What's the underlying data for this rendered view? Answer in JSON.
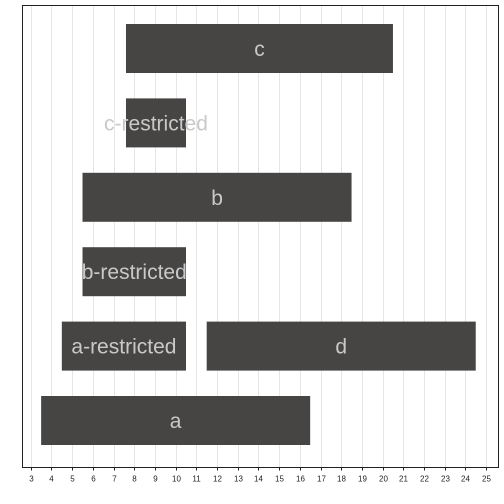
{
  "chart_data": {
    "type": "bar",
    "orientation": "horizontal-ranges",
    "title": "",
    "xlabel": "",
    "ylabel": "",
    "xlim": [
      2.6,
      25.6
    ],
    "x_ticks": [
      3,
      4,
      5,
      6,
      7,
      8,
      9,
      10,
      11,
      12,
      13,
      14,
      15,
      16,
      17,
      18,
      19,
      20,
      21,
      22,
      23,
      24,
      25
    ],
    "grid": "vertical",
    "bar_color": "#474444",
    "label_color": "#c9c9c9",
    "rows": [
      {
        "bars": [
          {
            "label": "c",
            "start": 7.6,
            "end": 20.5
          }
        ]
      },
      {
        "bars": [
          {
            "label": "c-restricted",
            "start": 7.6,
            "end": 10.5
          }
        ]
      },
      {
        "bars": [
          {
            "label": "b",
            "start": 5.5,
            "end": 18.5
          }
        ]
      },
      {
        "bars": [
          {
            "label": "b-restricted",
            "start": 5.5,
            "end": 10.5
          }
        ]
      },
      {
        "bars": [
          {
            "label": "a-restricted",
            "start": 4.5,
            "end": 10.5
          },
          {
            "label": "d",
            "start": 11.5,
            "end": 24.5
          }
        ]
      },
      {
        "bars": [
          {
            "label": "a",
            "start": 3.5,
            "end": 16.5
          }
        ]
      }
    ]
  }
}
